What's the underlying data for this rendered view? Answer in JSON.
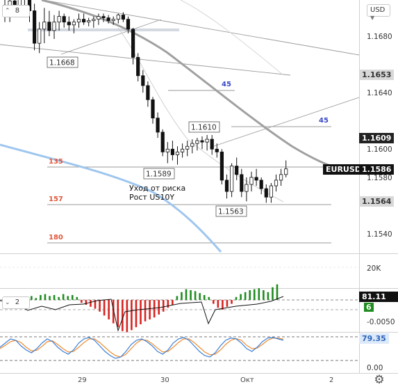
{
  "toolbar": {
    "currency": "USD",
    "collapse_count": "8",
    "indicator_pane_count": "2"
  },
  "price_scale": {
    "ticks": [
      "1.1680",
      "1.1640",
      "1.1600",
      "1.1580",
      "1.1540"
    ],
    "tags": {
      "level_high": "1.1653",
      "level_mid": "1.1609",
      "symbol": "EURUSD",
      "last_price": "1.1586",
      "level_low": "1.1564"
    }
  },
  "volume_pane": {
    "tick": "20K"
  },
  "histogram_pane": {
    "value": "81.11",
    "badge": "6",
    "tick": "-0.0050"
  },
  "stoch_pane": {
    "value": "79.35",
    "tick": "0.00"
  },
  "time_axis": {
    "labels": [
      "29",
      "30",
      "Окт",
      "2"
    ]
  },
  "annotations": {
    "price_labels": [
      "1.1668",
      "1.1610",
      "1.1589",
      "1.1563"
    ],
    "angle_labels": [
      "45",
      "45"
    ],
    "fib_labels": [
      "135",
      "157",
      "180"
    ],
    "note_line1": "Уход от риска",
    "note_line2": "Рост US10Y"
  },
  "colors": {
    "bull_hist": "#1e8c1e",
    "bear_hist": "#d9231f",
    "fib_label": "#e0563b",
    "angle_label": "#3848c8",
    "ma_gray": "#a0a0a0",
    "ma_blue": "#9ec6ee",
    "stoch_blue": "#3a7fd5",
    "stoch_orange": "#ef8a2e"
  },
  "chart_data": {
    "type": "candlestick",
    "price_candles_approx": [
      [
        1.1702,
        1.1708,
        1.169,
        1.1697
      ],
      [
        1.1697,
        1.171,
        1.169,
        1.1705
      ],
      [
        1.1705,
        1.1715,
        1.1695,
        1.17
      ],
      [
        1.17,
        1.1712,
        1.1695,
        1.1708
      ],
      [
        1.1708,
        1.1716,
        1.17,
        1.171
      ],
      [
        1.171,
        1.1712,
        1.169,
        1.1698
      ],
      [
        1.1698,
        1.1703,
        1.167,
        1.1675
      ],
      [
        1.1675,
        1.169,
        1.1668,
        1.1685
      ],
      [
        1.1685,
        1.17,
        1.1675,
        1.169
      ],
      [
        1.169,
        1.1698,
        1.168,
        1.1684
      ],
      [
        1.1684,
        1.1695,
        1.1678,
        1.169
      ],
      [
        1.169,
        1.1698,
        1.1684,
        1.1694
      ],
      [
        1.1694,
        1.1696,
        1.1686,
        1.169
      ],
      [
        1.169,
        1.1694,
        1.1684,
        1.1688
      ],
      [
        1.1688,
        1.1692,
        1.1682,
        1.169
      ],
      [
        1.169,
        1.1696,
        1.1686,
        1.1692
      ],
      [
        1.1692,
        1.1696,
        1.1688,
        1.169
      ],
      [
        1.169,
        1.1693,
        1.1687,
        1.1691
      ],
      [
        1.1691,
        1.1694,
        1.1686,
        1.1692
      ],
      [
        1.1692,
        1.1696,
        1.1688,
        1.1694
      ],
      [
        1.1694,
        1.1696,
        1.169,
        1.1693
      ],
      [
        1.1693,
        1.1695,
        1.1689,
        1.1691
      ],
      [
        1.1691,
        1.1694,
        1.1688,
        1.1692
      ],
      [
        1.1692,
        1.1696,
        1.1689,
        1.1695
      ],
      [
        1.1695,
        1.1697,
        1.169,
        1.1692
      ],
      [
        1.1692,
        1.1694,
        1.1682,
        1.1685
      ],
      [
        1.1685,
        1.1686,
        1.166,
        1.1665
      ],
      [
        1.1665,
        1.1668,
        1.1648,
        1.1652
      ],
      [
        1.1652,
        1.1656,
        1.164,
        1.1645
      ],
      [
        1.1645,
        1.1648,
        1.163,
        1.1635
      ],
      [
        1.1635,
        1.1637,
        1.1618,
        1.1622
      ],
      [
        1.1622,
        1.1626,
        1.1608,
        1.1612
      ],
      [
        1.1612,
        1.1614,
        1.1595,
        1.1598
      ],
      [
        1.1598,
        1.1605,
        1.159,
        1.16
      ],
      [
        1.16,
        1.1606,
        1.1592,
        1.1596
      ],
      [
        1.1596,
        1.1602,
        1.1589,
        1.1598
      ],
      [
        1.1598,
        1.1604,
        1.1594,
        1.16
      ],
      [
        1.16,
        1.1606,
        1.1595,
        1.1602
      ],
      [
        1.1602,
        1.1607,
        1.1597,
        1.1604
      ],
      [
        1.1604,
        1.1608,
        1.1599,
        1.1606
      ],
      [
        1.1606,
        1.1609,
        1.16,
        1.1605
      ],
      [
        1.1605,
        1.161,
        1.1599,
        1.1607
      ],
      [
        1.1607,
        1.161,
        1.1596,
        1.16
      ],
      [
        1.16,
        1.1604,
        1.1594,
        1.1598
      ],
      [
        1.1598,
        1.16,
        1.1575,
        1.1578
      ],
      [
        1.1578,
        1.1582,
        1.1565,
        1.157
      ],
      [
        1.157,
        1.159,
        1.1566,
        1.1588
      ],
      [
        1.1588,
        1.1594,
        1.1578,
        1.1582
      ],
      [
        1.1582,
        1.1586,
        1.1566,
        1.157
      ],
      [
        1.157,
        1.158,
        1.1563,
        1.1575
      ],
      [
        1.1575,
        1.1584,
        1.157,
        1.158
      ],
      [
        1.158,
        1.1586,
        1.1574,
        1.1578
      ],
      [
        1.1578,
        1.158,
        1.1568,
        1.1572
      ],
      [
        1.1572,
        1.1575,
        1.1562,
        1.1566
      ],
      [
        1.1566,
        1.1576,
        1.1562,
        1.1574
      ],
      [
        1.1574,
        1.1582,
        1.157,
        1.1578
      ],
      [
        1.1578,
        1.1586,
        1.1574,
        1.1582
      ],
      [
        1.1582,
        1.1592,
        1.158,
        1.1586
      ]
    ],
    "histogram_approx": [
      -0.3,
      -0.2,
      -0.5,
      -0.6,
      0.2,
      0.3,
      0.4,
      0.2,
      0.5,
      0.6,
      0.4,
      0.5,
      0.3,
      0.6,
      0.4,
      0.5,
      0.3,
      -0.3,
      -0.5,
      -0.7,
      -0.9,
      -1.2,
      -1.6,
      -2.0,
      -2.4,
      -2.8,
      -3.2,
      -3.3,
      -3.1,
      -2.8,
      -2.5,
      -2.2,
      -2.0,
      -1.8,
      -1.5,
      -1.2,
      -0.8,
      -0.5,
      0.4,
      0.8,
      1.1,
      1.0,
      0.9,
      0.7,
      0.5,
      0.3,
      -0.4,
      -0.8,
      -1.0,
      -0.7,
      -0.4,
      0.3,
      0.6,
      0.8,
      1.0,
      1.1,
      1.2,
      1.0,
      0.8,
      1.3,
      1.6
    ],
    "stochastic_approx": {
      "fast": [
        55,
        70,
        85,
        80,
        60,
        45,
        35,
        50,
        70,
        85,
        75,
        55,
        40,
        30,
        45,
        70,
        85,
        90,
        80,
        60,
        40,
        25,
        15,
        20,
        40,
        65,
        80,
        85,
        75,
        60,
        40,
        30,
        45,
        70,
        85,
        90,
        80,
        60,
        40,
        25,
        20,
        35,
        60,
        80,
        88,
        85,
        70,
        50,
        40,
        55,
        75,
        88,
        90,
        85,
        80
      ],
      "slow": [
        50,
        62,
        75,
        80,
        72,
        55,
        42,
        44,
        58,
        75,
        78,
        65,
        50,
        38,
        40,
        55,
        72,
        85,
        85,
        72,
        55,
        38,
        25,
        20,
        30,
        50,
        70,
        82,
        80,
        68,
        52,
        38,
        40,
        55,
        72,
        85,
        85,
        72,
        55,
        38,
        28,
        30,
        45,
        65,
        80,
        86,
        80,
        62,
        50,
        52,
        65,
        80,
        88,
        88,
        84
      ]
    }
  }
}
